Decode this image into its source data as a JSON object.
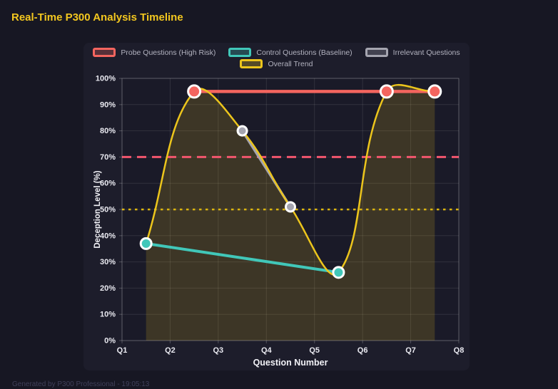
{
  "page": {
    "title": "Real-Time P300 Analysis Timeline",
    "footer": "Generated by P300 Professional - 19:05:13"
  },
  "chart_data": {
    "type": "line",
    "title": "Real-Time P300 Analysis Timeline",
    "xlabel": "Question Number",
    "ylabel": "Deception Level (%)",
    "x_ticks": [
      "Q1",
      "Q2",
      "Q3",
      "Q4",
      "Q5",
      "Q6",
      "Q7",
      "Q8"
    ],
    "x_range": [
      1,
      8
    ],
    "ylim": [
      0,
      100
    ],
    "y_tick_step": 10,
    "y_tick_suffix": "%",
    "grid": true,
    "legend_position": "top",
    "legend_rows": [
      [
        0,
        1,
        2
      ],
      [
        3
      ]
    ],
    "series": [
      {
        "name": "Probe Questions (High Risk)",
        "color": "#f4655f",
        "x": [
          2.5,
          6.5,
          7.5
        ],
        "values": [
          95,
          95,
          95
        ],
        "line_width": 4.5,
        "point_radius": 8.5,
        "smooth": false,
        "fill": false
      },
      {
        "name": "Control Questions (Baseline)",
        "color": "#41c7b9",
        "x": [
          1.5,
          5.5
        ],
        "values": [
          37,
          26
        ],
        "line_width": 4,
        "point_radius": 7.5,
        "smooth": false,
        "fill": false
      },
      {
        "name": "Irrelevant Questions",
        "color": "#a5a5b0",
        "x": [
          3.5,
          4.5
        ],
        "values": [
          80,
          51
        ],
        "line_width": 3.5,
        "point_radius": 6.5,
        "smooth": false,
        "fill": false
      },
      {
        "name": "Overall Trend",
        "color": "#ecc51c",
        "x": [
          1.5,
          2.5,
          3.5,
          4.5,
          5.5,
          6.5,
          7.5
        ],
        "values": [
          37,
          95,
          80,
          51,
          26,
          95,
          95
        ],
        "line_width": 2.5,
        "point_radius": 0,
        "smooth": true,
        "fill": true,
        "fill_opacity": 0.17
      }
    ],
    "thresholds": [
      {
        "value": 70,
        "color": "#f2566e",
        "style": "dashed"
      },
      {
        "value": 50,
        "color": "#dcb50e",
        "style": "dotted"
      }
    ]
  },
  "colors": {
    "page_bg": "#171723",
    "panel_bg": "#1d1d2b",
    "plot_bg": "#1a1a28",
    "grid": "rgba(255,255,255,0.10)",
    "axis": "rgba(255,255,255,0.22)",
    "tick_label": "#e9e9f0",
    "axis_title": "#f1f1f6",
    "legend_text": "#b2b2bf",
    "title": "#f3c71f",
    "footer": "#40405a",
    "point_border": "#ffffff"
  }
}
